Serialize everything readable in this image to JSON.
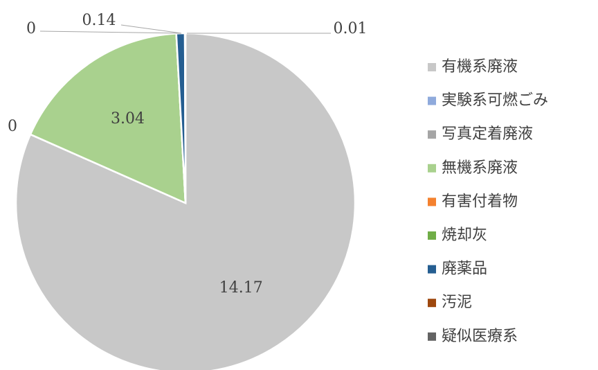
{
  "chart_data": {
    "type": "pie",
    "categories": [
      "有機系廃液",
      "実験系可燃ごみ",
      "写真定着廃液",
      "無機系廃液",
      "有害付着物",
      "焼却灰",
      "廃薬品",
      "汚泥",
      "疑似医療系"
    ],
    "values": [
      14.17,
      0,
      0,
      3.04,
      0,
      0,
      0.14,
      0,
      0.01
    ],
    "value_labels": [
      "14.17",
      "0",
      null,
      "3.04",
      "0",
      null,
      "0.14",
      null,
      "0.01"
    ],
    "colors": [
      "#c8c8c8",
      "#8faadc",
      "#a5a5a5",
      "#a9d18e",
      "#f4812f",
      "#70ad47",
      "#255e91",
      "#9e480e",
      "#636363"
    ],
    "legend": "right"
  }
}
